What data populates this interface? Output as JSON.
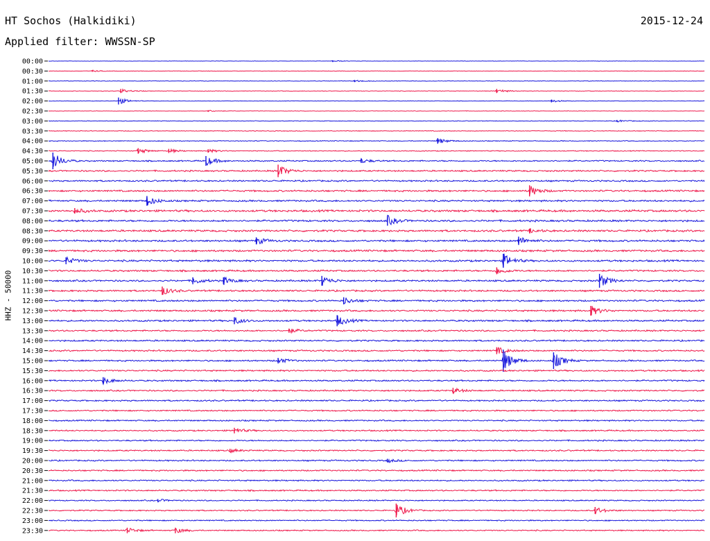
{
  "header": {
    "station": "HT Sochos (Halkidiki)",
    "date": "2015-12-24",
    "filter": "Applied filter: WWSSN-SP"
  },
  "colors": {
    "trace_a": "#1414dc",
    "trace_b": "#ee1548",
    "background": "#ffffff"
  },
  "chart_data": {
    "type": "line",
    "title": "HT Sochos (Halkidiki)",
    "ylabel": "HHZ - 50000",
    "xlabel": "",
    "row_labels": [
      "00:00",
      "00:30",
      "01:00",
      "01:30",
      "02:00",
      "02:30",
      "03:00",
      "03:30",
      "04:00",
      "04:30",
      "05:00",
      "05:30",
      "06:00",
      "06:30",
      "07:00",
      "07:30",
      "08:00",
      "08:30",
      "09:00",
      "09:30",
      "10:00",
      "10:30",
      "11:00",
      "11:30",
      "12:00",
      "12:30",
      "13:00",
      "13:30",
      "14:00",
      "14:30",
      "15:00",
      "15:30",
      "16:00",
      "16:30",
      "17:00",
      "17:30",
      "18:00",
      "18:30",
      "19:00",
      "19:30",
      "20:00",
      "20:30",
      "21:00",
      "21:30",
      "22:00",
      "22:30",
      "23:00",
      "23:30"
    ],
    "row_minutes": 30,
    "grid": false,
    "legend": "none",
    "trace_colors_alternate": [
      "#1414dc",
      "#ee1548"
    ],
    "row_noise": [
      0.2,
      0.25,
      0.3,
      0.3,
      0.25,
      0.25,
      0.35,
      0.4,
      0.5,
      0.5,
      0.8,
      0.9,
      0.9,
      1.0,
      1.0,
      1.2,
      1.1,
      1.1,
      1.1,
      1.1,
      1.1,
      1.0,
      1.0,
      1.0,
      1.0,
      1.0,
      1.0,
      0.9,
      0.9,
      0.9,
      0.9,
      0.9,
      0.9,
      0.85,
      0.85,
      0.8,
      0.8,
      0.8,
      0.8,
      0.8,
      0.8,
      0.8,
      0.8,
      0.8,
      0.7,
      0.7,
      0.7,
      0.7
    ],
    "events": [
      {
        "row": "00:00",
        "minute": 13.0,
        "amp": 1.0
      },
      {
        "row": "00:30",
        "minute": 2.0,
        "amp": 1.2
      },
      {
        "row": "01:00",
        "minute": 14.0,
        "amp": 1.5
      },
      {
        "row": "01:30",
        "minute": 3.3,
        "amp": 3.0
      },
      {
        "row": "01:30",
        "minute": 20.5,
        "amp": 3.0
      },
      {
        "row": "02:00",
        "minute": 3.2,
        "amp": 5.0
      },
      {
        "row": "02:00",
        "minute": 23.0,
        "amp": 2.0
      },
      {
        "row": "02:30",
        "minute": 7.3,
        "amp": 1.2
      },
      {
        "row": "03:00",
        "minute": 26.0,
        "amp": 1.5
      },
      {
        "row": "04:00",
        "minute": 17.8,
        "amp": 4.0
      },
      {
        "row": "04:30",
        "minute": 4.1,
        "amp": 4.0
      },
      {
        "row": "04:30",
        "minute": 5.5,
        "amp": 3.0
      },
      {
        "row": "04:30",
        "minute": 7.3,
        "amp": 2.5
      },
      {
        "row": "05:00",
        "minute": 0.2,
        "amp": 12.0
      },
      {
        "row": "05:00",
        "minute": 7.2,
        "amp": 7.0
      },
      {
        "row": "05:00",
        "minute": 14.3,
        "amp": 3.0
      },
      {
        "row": "05:30",
        "minute": 10.5,
        "amp": 9.0
      },
      {
        "row": "06:30",
        "minute": 22.0,
        "amp": 8.0
      },
      {
        "row": "07:00",
        "minute": 4.5,
        "amp": 7.0
      },
      {
        "row": "07:30",
        "minute": 1.2,
        "amp": 4.0
      },
      {
        "row": "08:00",
        "minute": 15.5,
        "amp": 7.0
      },
      {
        "row": "08:30",
        "minute": 22.0,
        "amp": 3.0
      },
      {
        "row": "09:00",
        "minute": 9.5,
        "amp": 5.0
      },
      {
        "row": "09:00",
        "minute": 21.5,
        "amp": 6.0
      },
      {
        "row": "10:00",
        "minute": 0.8,
        "amp": 5.0
      },
      {
        "row": "10:00",
        "minute": 20.8,
        "amp": 10.0
      },
      {
        "row": "10:30",
        "minute": 20.5,
        "amp": 5.0
      },
      {
        "row": "11:00",
        "minute": 6.6,
        "amp": 5.0
      },
      {
        "row": "11:00",
        "minute": 8.0,
        "amp": 5.0
      },
      {
        "row": "11:00",
        "minute": 12.5,
        "amp": 7.0
      },
      {
        "row": "11:00",
        "minute": 25.2,
        "amp": 10.0
      },
      {
        "row": "11:30",
        "minute": 5.2,
        "amp": 6.0
      },
      {
        "row": "12:00",
        "minute": 13.5,
        "amp": 5.0
      },
      {
        "row": "12:30",
        "minute": 24.8,
        "amp": 7.0
      },
      {
        "row": "13:00",
        "minute": 8.5,
        "amp": 5.0
      },
      {
        "row": "13:00",
        "minute": 13.2,
        "amp": 8.0
      },
      {
        "row": "13:30",
        "minute": 11.0,
        "amp": 3.0
      },
      {
        "row": "14:30",
        "minute": 20.5,
        "amp": 5.0
      },
      {
        "row": "15:00",
        "minute": 10.5,
        "amp": 4.0
      },
      {
        "row": "15:00",
        "minute": 20.8,
        "amp": 16.0
      },
      {
        "row": "15:00",
        "minute": 23.1,
        "amp": 12.0
      },
      {
        "row": "16:00",
        "minute": 2.5,
        "amp": 5.0
      },
      {
        "row": "16:30",
        "minute": 18.5,
        "amp": 4.0
      },
      {
        "row": "18:30",
        "minute": 8.5,
        "amp": 4.0
      },
      {
        "row": "19:30",
        "minute": 8.3,
        "amp": 2.5
      },
      {
        "row": "20:00",
        "minute": 15.5,
        "amp": 2.5
      },
      {
        "row": "22:00",
        "minute": 5.0,
        "amp": 2.0
      },
      {
        "row": "22:30",
        "minute": 15.9,
        "amp": 10.0
      },
      {
        "row": "22:30",
        "minute": 25.0,
        "amp": 5.0
      },
      {
        "row": "23:30",
        "minute": 3.6,
        "amp": 4.0
      },
      {
        "row": "23:30",
        "minute": 5.8,
        "amp": 4.0
      }
    ]
  }
}
